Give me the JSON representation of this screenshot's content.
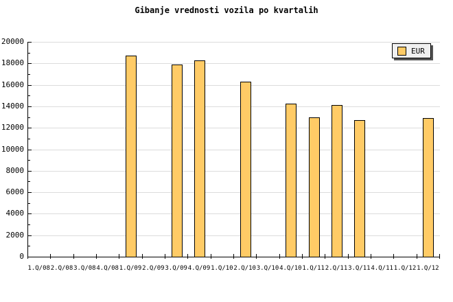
{
  "chart_data": {
    "type": "bar",
    "title": "Gibanje vrednosti vozila po kvartalih",
    "categories": [
      "1.Q/08",
      "2.Q/08",
      "3.Q/08",
      "4.Q/08",
      "1.Q/09",
      "2.Q/09",
      "3.Q/09",
      "4.Q/09",
      "1.Q/10",
      "2.Q/10",
      "3.Q/10",
      "4.Q/10",
      "1.Q/11",
      "2.Q/11",
      "3.Q/11",
      "4.Q/11",
      "1.Q/12",
      "1.Q/12"
    ],
    "series": [
      {
        "name": "EUR",
        "values": [
          null,
          null,
          null,
          null,
          18700,
          null,
          17900,
          18300,
          null,
          16300,
          null,
          14250,
          12950,
          14150,
          12700,
          null,
          null,
          12900
        ]
      }
    ],
    "xlabel": "",
    "ylabel": "",
    "ylim": [
      0,
      20000
    ],
    "ytick_major": 2000,
    "ytick_minor": 1000,
    "grid": "horizontal-major",
    "legend_position": "top-right",
    "legend_entries": [
      "EUR"
    ]
  },
  "colors": {
    "background": "#FFFFFF",
    "bar_fill": "#FFCB66",
    "bar_border": "#000000",
    "gridline": "#DCDCDC",
    "axis": "#000000",
    "text": "#000000",
    "legend_bg": "#F0F0F0",
    "legend_border": "#000000",
    "legend_shadow": "#555555"
  }
}
